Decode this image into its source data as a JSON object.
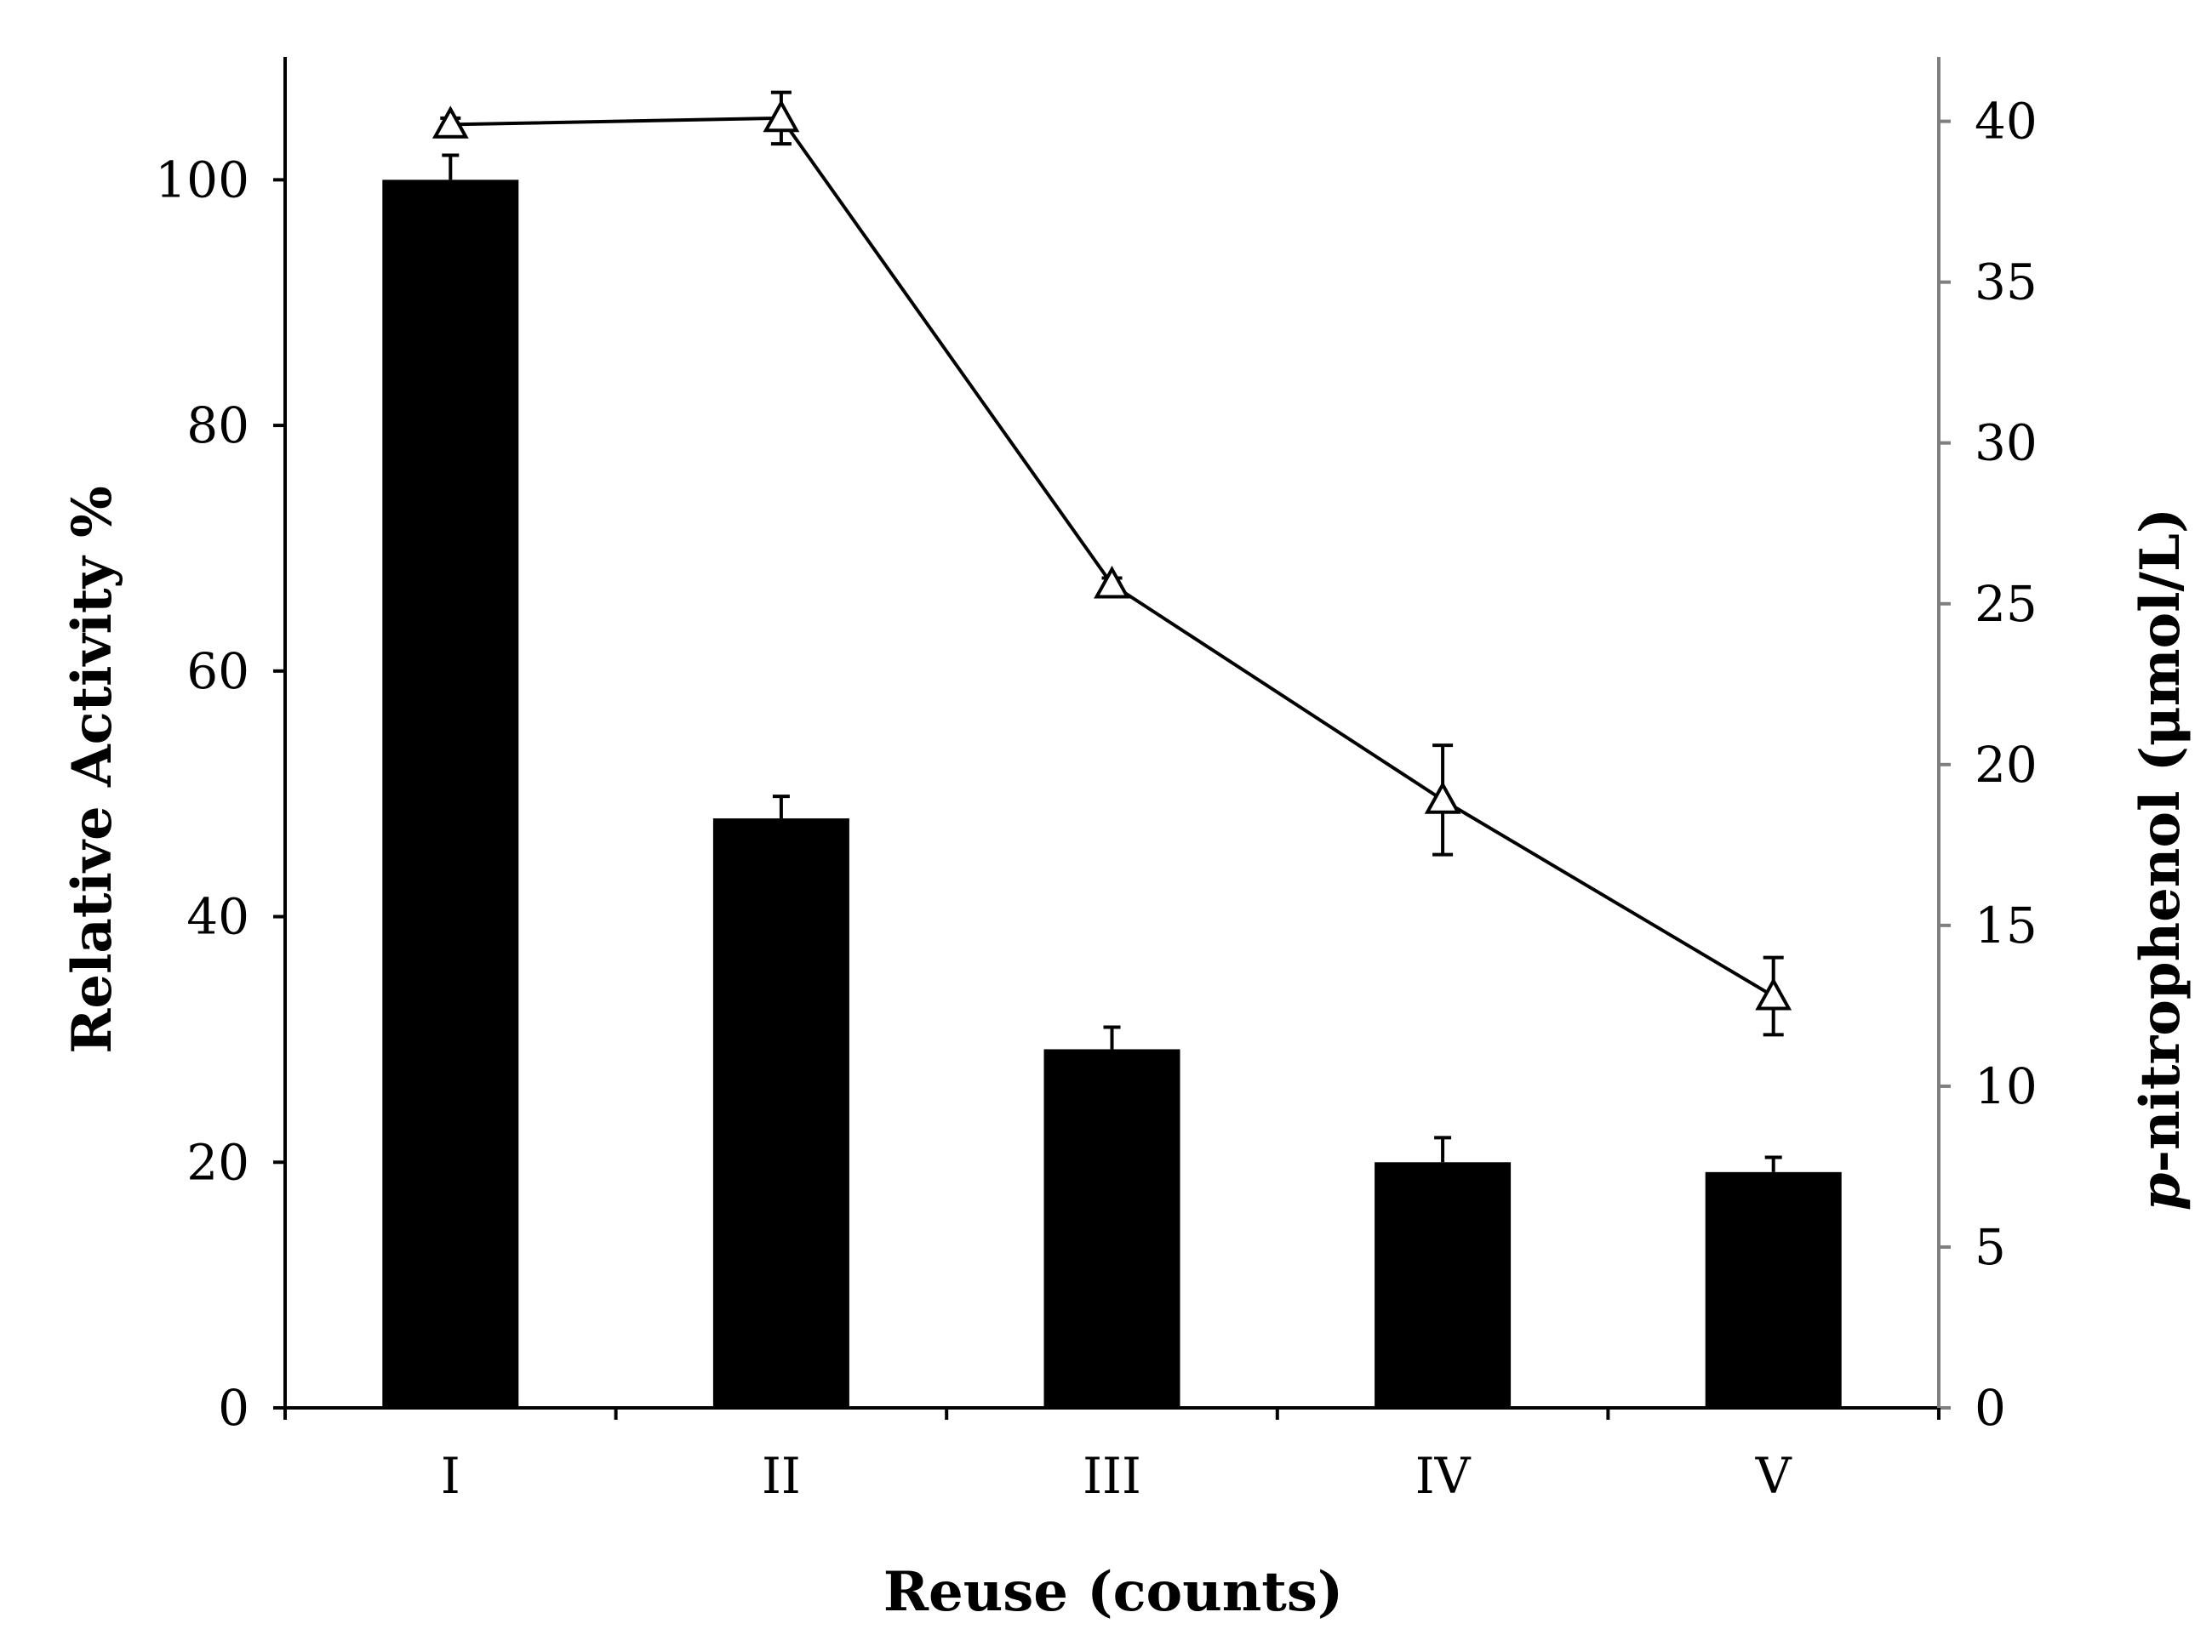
{
  "chart_data": {
    "type": "bar",
    "categories": [
      "I",
      "II",
      "III",
      "IV",
      "V"
    ],
    "xlabel": "Reuse (counts)",
    "ylabel": "Relative Activity %",
    "ylabel_right_italic": "p",
    "ylabel_right_rest": "-nitrophenol (μmol/L)",
    "ylim": [
      0,
      110
    ],
    "y2lim": [
      0,
      42
    ],
    "yticks": [
      0,
      20,
      40,
      60,
      80,
      100
    ],
    "y2ticks": [
      0,
      5,
      10,
      15,
      20,
      25,
      30,
      35,
      40
    ],
    "series": [
      {
        "type": "bar",
        "axis": "left",
        "color": "#000000",
        "values": [
          100,
          48,
          29.2,
          20,
          19.2
        ],
        "errors": [
          2,
          1.8,
          1.8,
          2,
          1.2
        ]
      },
      {
        "type": "line",
        "axis": "right",
        "marker": "open-triangle",
        "color": "#000000",
        "values": [
          39.9,
          40.1,
          25.6,
          18.9,
          12.8
        ],
        "errors": [
          0.2,
          0.8,
          0.2,
          1.7,
          1.2
        ]
      }
    ],
    "grid": false,
    "legend": "none"
  }
}
